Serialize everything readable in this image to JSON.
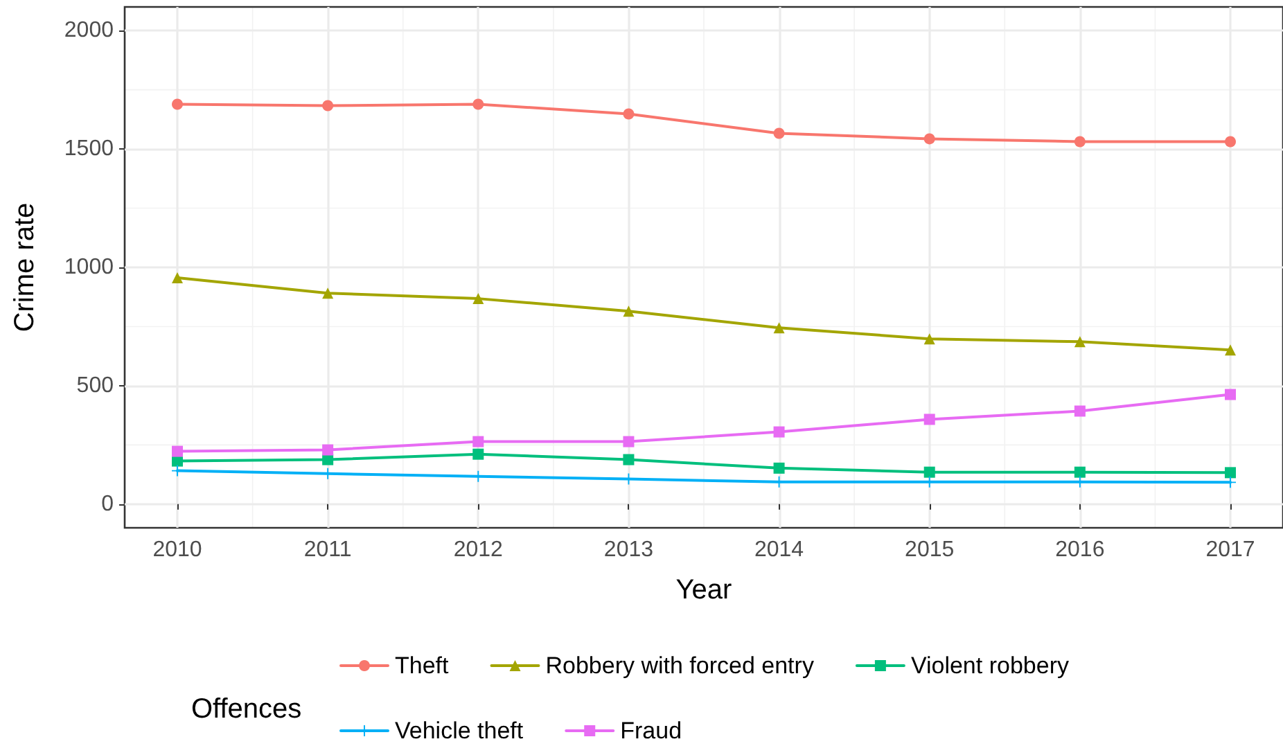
{
  "chart_data": {
    "type": "line",
    "xlabel": "Year",
    "ylabel": "Crime rate",
    "legend_title": "Offences",
    "x": [
      2010,
      2011,
      2012,
      2013,
      2014,
      2015,
      2016,
      2017
    ],
    "xlim": [
      2009.65,
      2017.35
    ],
    "xticks": [
      2010,
      2011,
      2012,
      2013,
      2014,
      2015,
      2016,
      2017
    ],
    "ylim": [
      -100,
      2100
    ],
    "yticks": [
      0,
      500,
      1000,
      1500,
      2000
    ],
    "grid": true,
    "legend": "bottom",
    "series": [
      {
        "name": "Theft",
        "color": "#f8766d",
        "marker": "circle",
        "values": [
          1689,
          1683,
          1689,
          1648,
          1566,
          1543,
          1531,
          1531
        ]
      },
      {
        "name": "Robbery with forced entry",
        "color": "#a3a500",
        "marker": "triangle",
        "values": [
          956,
          891,
          868,
          815,
          745,
          698,
          686,
          651
        ]
      },
      {
        "name": "Violent robbery",
        "color": "#00bf7d",
        "marker": "square",
        "values": [
          182,
          188,
          211,
          188,
          152,
          135,
          135,
          133
        ]
      },
      {
        "name": "Vehicle theft",
        "color": "#00b0f6",
        "marker": "cross",
        "values": [
          141,
          129,
          117,
          106,
          94,
          94,
          94,
          92
        ]
      },
      {
        "name": "Fraud",
        "color": "#e76bf3",
        "marker": "square",
        "values": [
          223,
          229,
          264,
          264,
          305,
          358,
          393,
          463
        ]
      }
    ]
  }
}
